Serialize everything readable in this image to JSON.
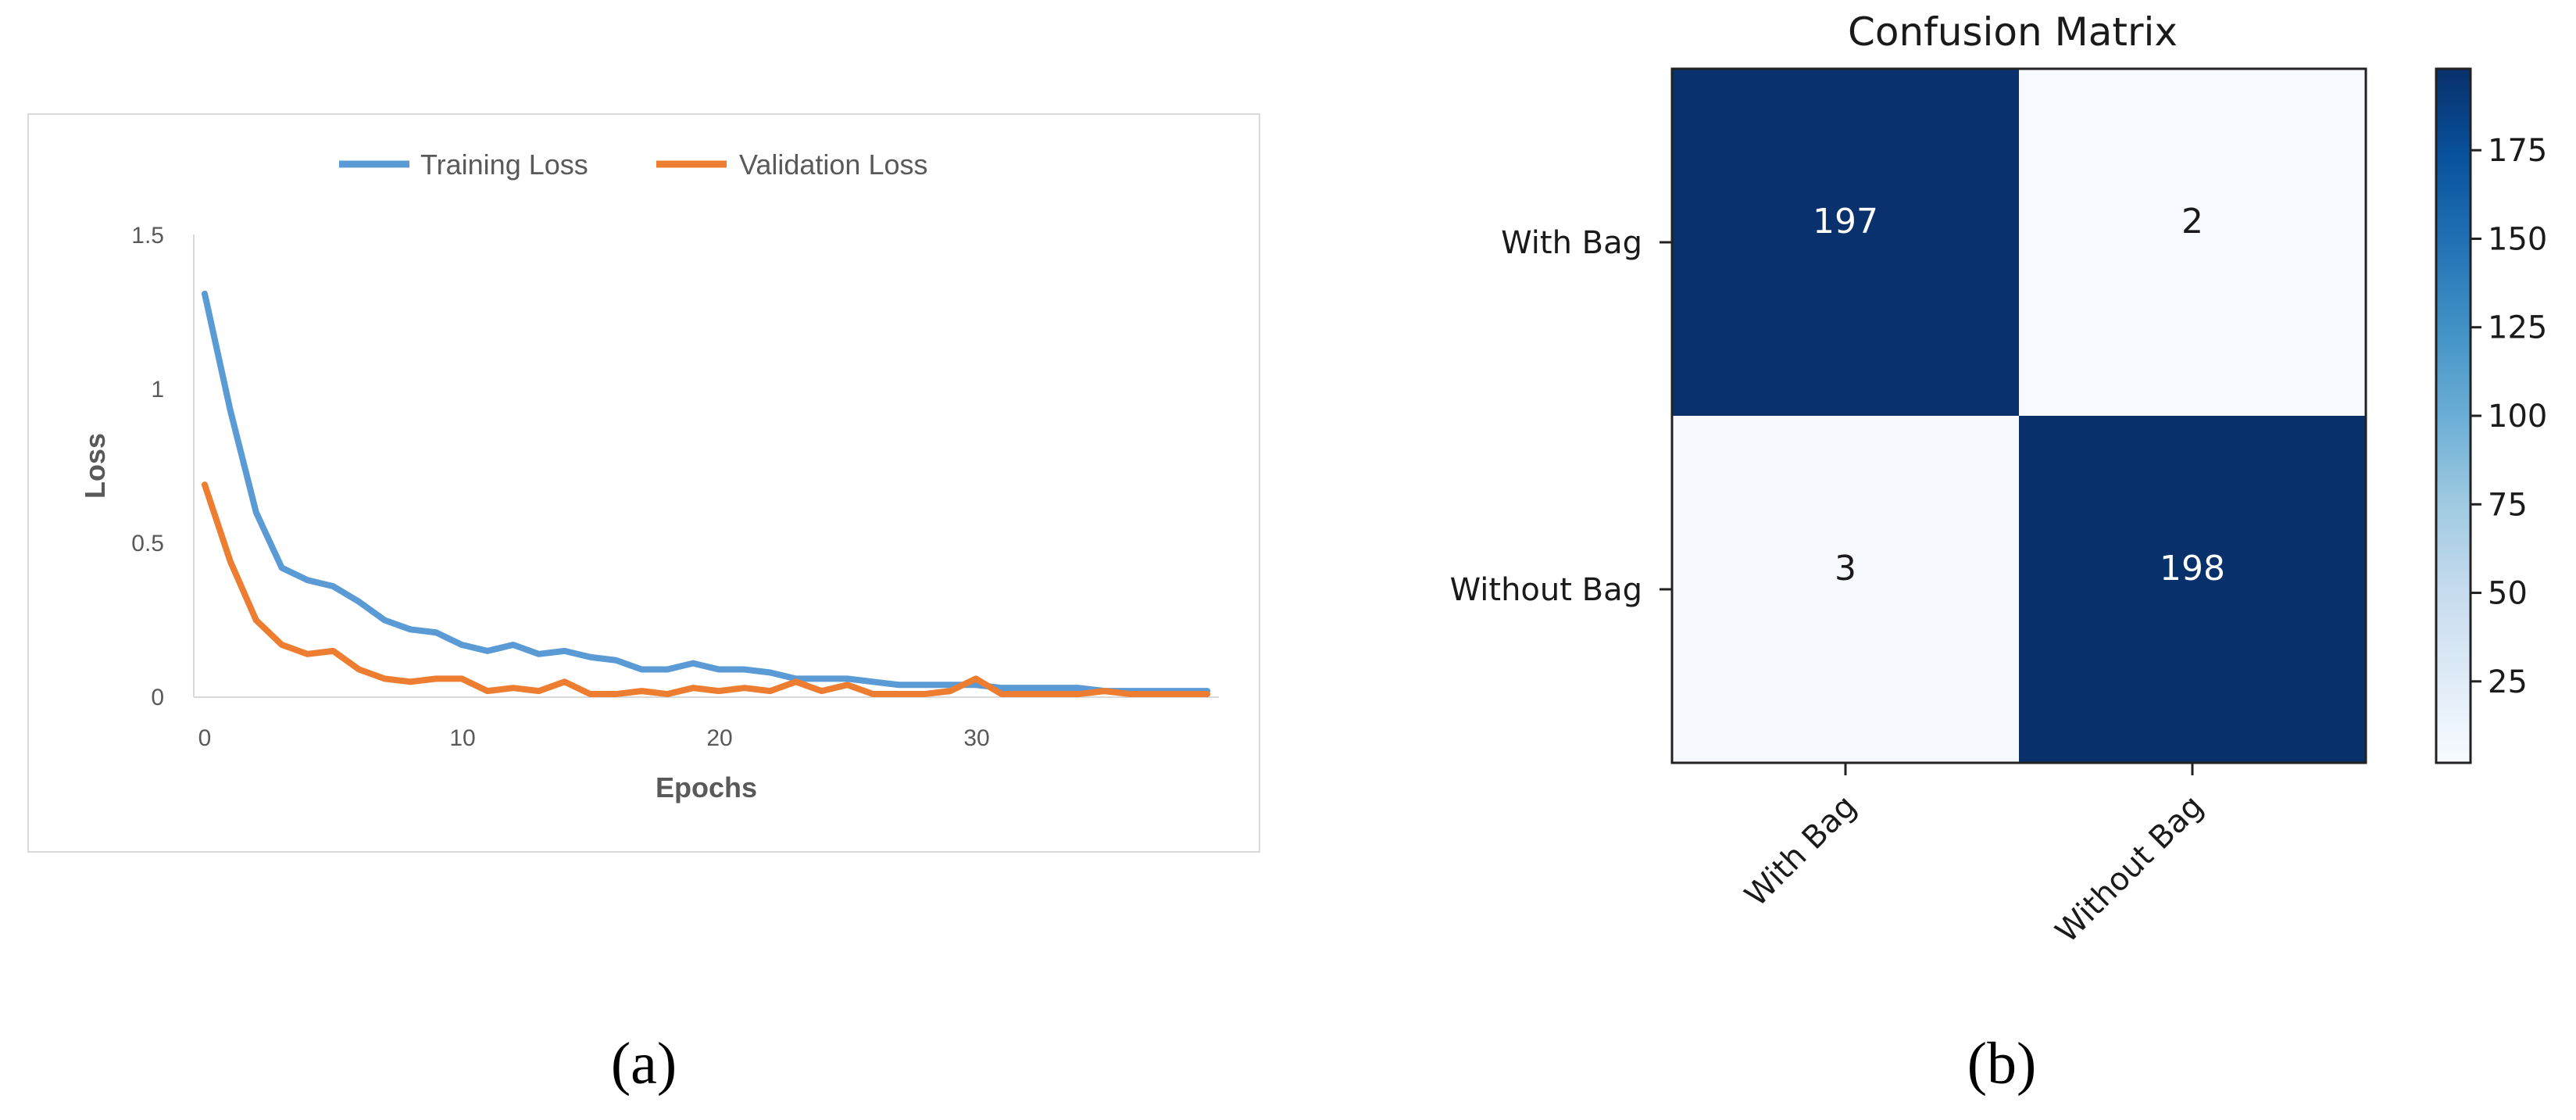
{
  "chart_data": [
    {
      "type": "line",
      "caption": "(a)",
      "xlabel": "Epochs",
      "ylabel": "Loss",
      "xlim": [
        0,
        39
      ],
      "ylim": [
        0,
        1.5
      ],
      "x_ticks": [
        "0",
        "10",
        "20",
        "30"
      ],
      "y_ticks": [
        "0",
        "0.5",
        "1",
        "1.5"
      ],
      "legend_position": "top",
      "grid": false,
      "x": [
        0,
        1,
        2,
        3,
        4,
        5,
        6,
        7,
        8,
        9,
        10,
        11,
        12,
        13,
        14,
        15,
        16,
        17,
        18,
        19,
        20,
        21,
        22,
        23,
        24,
        25,
        26,
        27,
        28,
        29,
        30,
        31,
        32,
        33,
        34,
        35,
        36,
        37,
        38,
        39
      ],
      "series": [
        {
          "name": "Training Loss",
          "color": "#5b9bd5",
          "values": [
            1.31,
            0.93,
            0.6,
            0.42,
            0.38,
            0.36,
            0.31,
            0.25,
            0.22,
            0.21,
            0.17,
            0.15,
            0.17,
            0.14,
            0.15,
            0.13,
            0.12,
            0.09,
            0.09,
            0.11,
            0.09,
            0.09,
            0.08,
            0.06,
            0.06,
            0.06,
            0.05,
            0.04,
            0.04,
            0.04,
            0.04,
            0.03,
            0.03,
            0.03,
            0.03,
            0.02,
            0.02,
            0.02,
            0.02,
            0.02
          ]
        },
        {
          "name": "Validation Loss",
          "color": "#ed7d31",
          "values": [
            0.69,
            0.44,
            0.25,
            0.17,
            0.14,
            0.15,
            0.09,
            0.06,
            0.05,
            0.06,
            0.06,
            0.02,
            0.03,
            0.02,
            0.05,
            0.01,
            0.01,
            0.02,
            0.01,
            0.03,
            0.02,
            0.03,
            0.02,
            0.05,
            0.02,
            0.04,
            0.01,
            0.01,
            0.01,
            0.02,
            0.06,
            0.01,
            0.01,
            0.01,
            0.01,
            0.02,
            0.01,
            0.01,
            0.01,
            0.01
          ]
        }
      ]
    },
    {
      "type": "heatmap",
      "caption": "(b)",
      "title": "Confusion Matrix",
      "row_labels": [
        "With Bag",
        "Without Bag"
      ],
      "col_labels": [
        "With Bag",
        "Without Bag"
      ],
      "values": [
        [
          197,
          2
        ],
        [
          3,
          198
        ]
      ],
      "colormap": "Blues",
      "colorbar_ticks": [
        "25",
        "50",
        "75",
        "100",
        "125",
        "150",
        "175"
      ],
      "colorbar_range": [
        2,
        198
      ]
    }
  ]
}
